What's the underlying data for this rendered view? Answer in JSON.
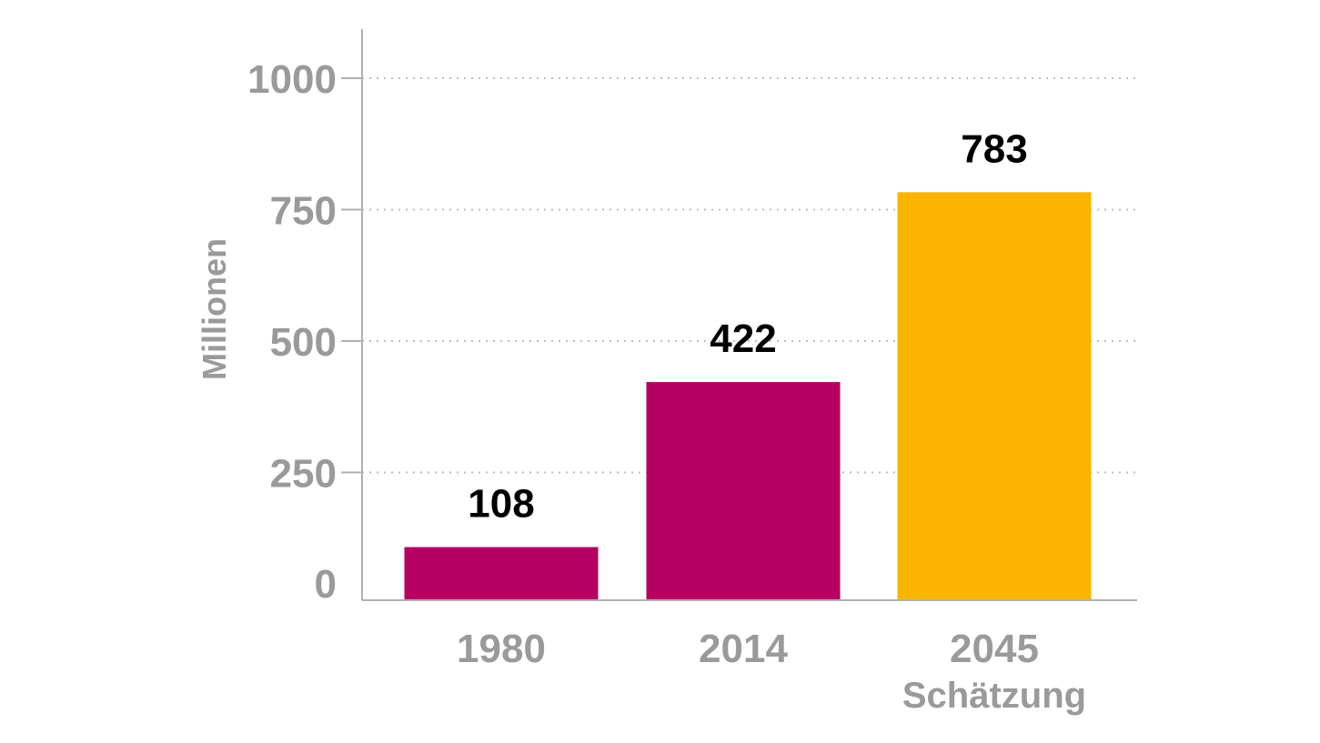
{
  "chart_data": {
    "type": "bar",
    "categories": [
      "1980",
      "2014",
      "2045"
    ],
    "category_sublabels": [
      "",
      "",
      "Schätzung"
    ],
    "values": [
      108,
      422,
      783
    ],
    "data_labels": [
      "108",
      "422",
      "783"
    ],
    "colors": [
      "#B50062",
      "#B50062",
      "#FBB400"
    ],
    "title": "",
    "xlabel": "",
    "ylabel": "Millionen",
    "ylim": [
      0,
      1000
    ],
    "yticks": [
      0,
      250,
      500,
      750,
      1000
    ],
    "grid": true,
    "grid_style": "dotted",
    "axis_color": "#b0b0b0",
    "label_color": "#9a9a9a"
  }
}
